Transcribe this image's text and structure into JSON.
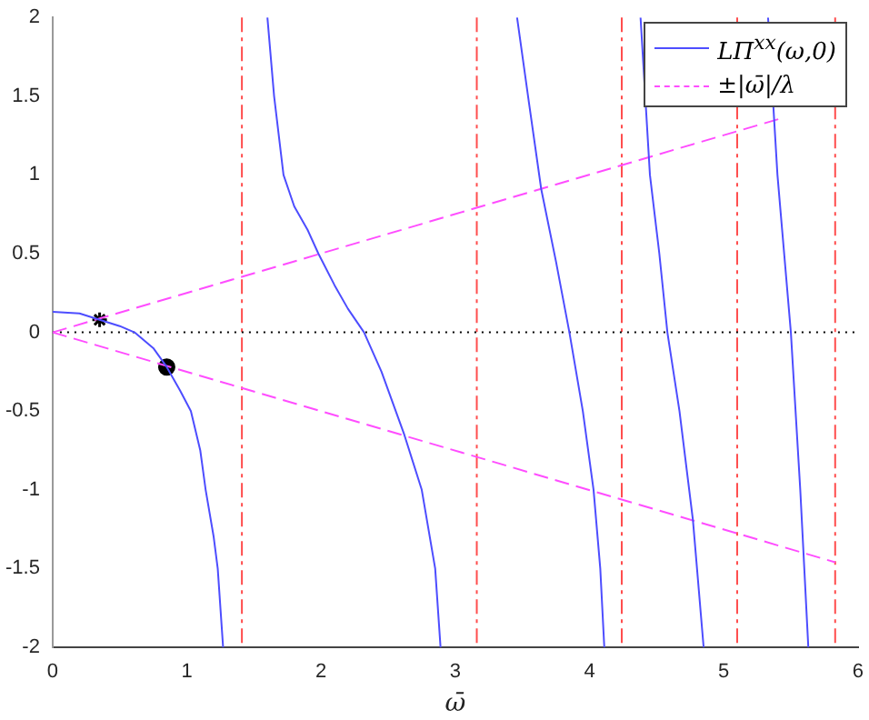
{
  "chart_data": {
    "type": "line",
    "xlabel": "ω̄",
    "xlim": [
      0,
      6
    ],
    "xticks": [
      0,
      1,
      2,
      3,
      4,
      5,
      6
    ],
    "ylim": [
      -2,
      2
    ],
    "yticks": [
      -2,
      -1.5,
      -1,
      -0.5,
      0,
      0.5,
      1,
      1.5,
      2
    ],
    "grid": false,
    "legend": "top right",
    "marker": "none",
    "series": [
      {
        "name": "LΠ$^{xx}$(ω,0)",
        "type": "line",
        "color": "#4d4dff",
        "line_style": "solid",
        "x": [
          0,
          0.2,
          0.35,
          0.5,
          0.61,
          0.75,
          0.85,
          0.95,
          1.03,
          1.1,
          1.14,
          1.2,
          1.23,
          1.27,
          1.41,
          1.6,
          1.65,
          1.72,
          1.8,
          1.9,
          1.98,
          2.1,
          2.2,
          2.32,
          2.45,
          2.62,
          2.75,
          2.85,
          2.89,
          3.16,
          3.46,
          3.55,
          3.64,
          3.75,
          3.85,
          3.95,
          4.03,
          4.08,
          4.11,
          4.24,
          4.38,
          4.45,
          4.52,
          4.58,
          4.67,
          4.77,
          4.85,
          5.1,
          5.33,
          5.4,
          5.5,
          5.57,
          5.63
        ],
        "values": [
          0.13,
          0.12,
          0.08,
          0.04,
          0,
          -0.1,
          -0.22,
          -0.37,
          -0.5,
          -0.75,
          -1,
          -1.3,
          -1.5,
          -2,
          null,
          2,
          1.5,
          1,
          0.8,
          0.65,
          0.5,
          0.3,
          0.15,
          0,
          -0.25,
          -0.65,
          -1,
          -1.5,
          -2,
          null,
          2,
          1.45,
          0.91,
          0.45,
          0,
          -0.5,
          -1,
          -1.5,
          -2,
          null,
          2,
          1,
          0.5,
          0,
          -0.5,
          -1.19,
          -2,
          null,
          2,
          1,
          0,
          -1,
          -2
        ]
      },
      {
        "name": "±|ω̄|/λ",
        "type": "line",
        "color": "#ff4dff",
        "line_style": "dashed",
        "x": [
          0,
          5.43
        ],
        "values": [
          0,
          1.36
        ]
      },
      {
        "type": "line",
        "color": "#ff4dff",
        "line_style": "dashed",
        "x": [
          0,
          5.83
        ],
        "values": [
          0,
          -1.46
        ]
      },
      {
        "type": "scatter",
        "color": "#000000",
        "marker": "cross",
        "x": [
          0.35
        ],
        "values": [
          0.08
        ]
      },
      {
        "type": "scatter",
        "color": "#000000",
        "marker": "circle",
        "x": [
          0.85
        ],
        "values": [
          -0.22
        ]
      }
    ],
    "ref_lines": [
      {
        "axis": "x",
        "value": 1.41,
        "color": "#ff4d4d",
        "line_style": "dashed"
      },
      {
        "axis": "x",
        "value": 3.16,
        "color": "#ff4d4d",
        "line_style": "dashed"
      },
      {
        "axis": "x",
        "value": 4.24,
        "color": "#ff4d4d",
        "line_style": "dashed"
      },
      {
        "axis": "x",
        "value": 5.1,
        "color": "#ff4d4d",
        "line_style": "dashed"
      },
      {
        "axis": "x",
        "value": 5.83,
        "color": "#ff4d4d",
        "line_style": "dashed"
      },
      {
        "axis": "y",
        "value": 0,
        "color": "#000000",
        "line_style": "dotted"
      }
    ]
  }
}
